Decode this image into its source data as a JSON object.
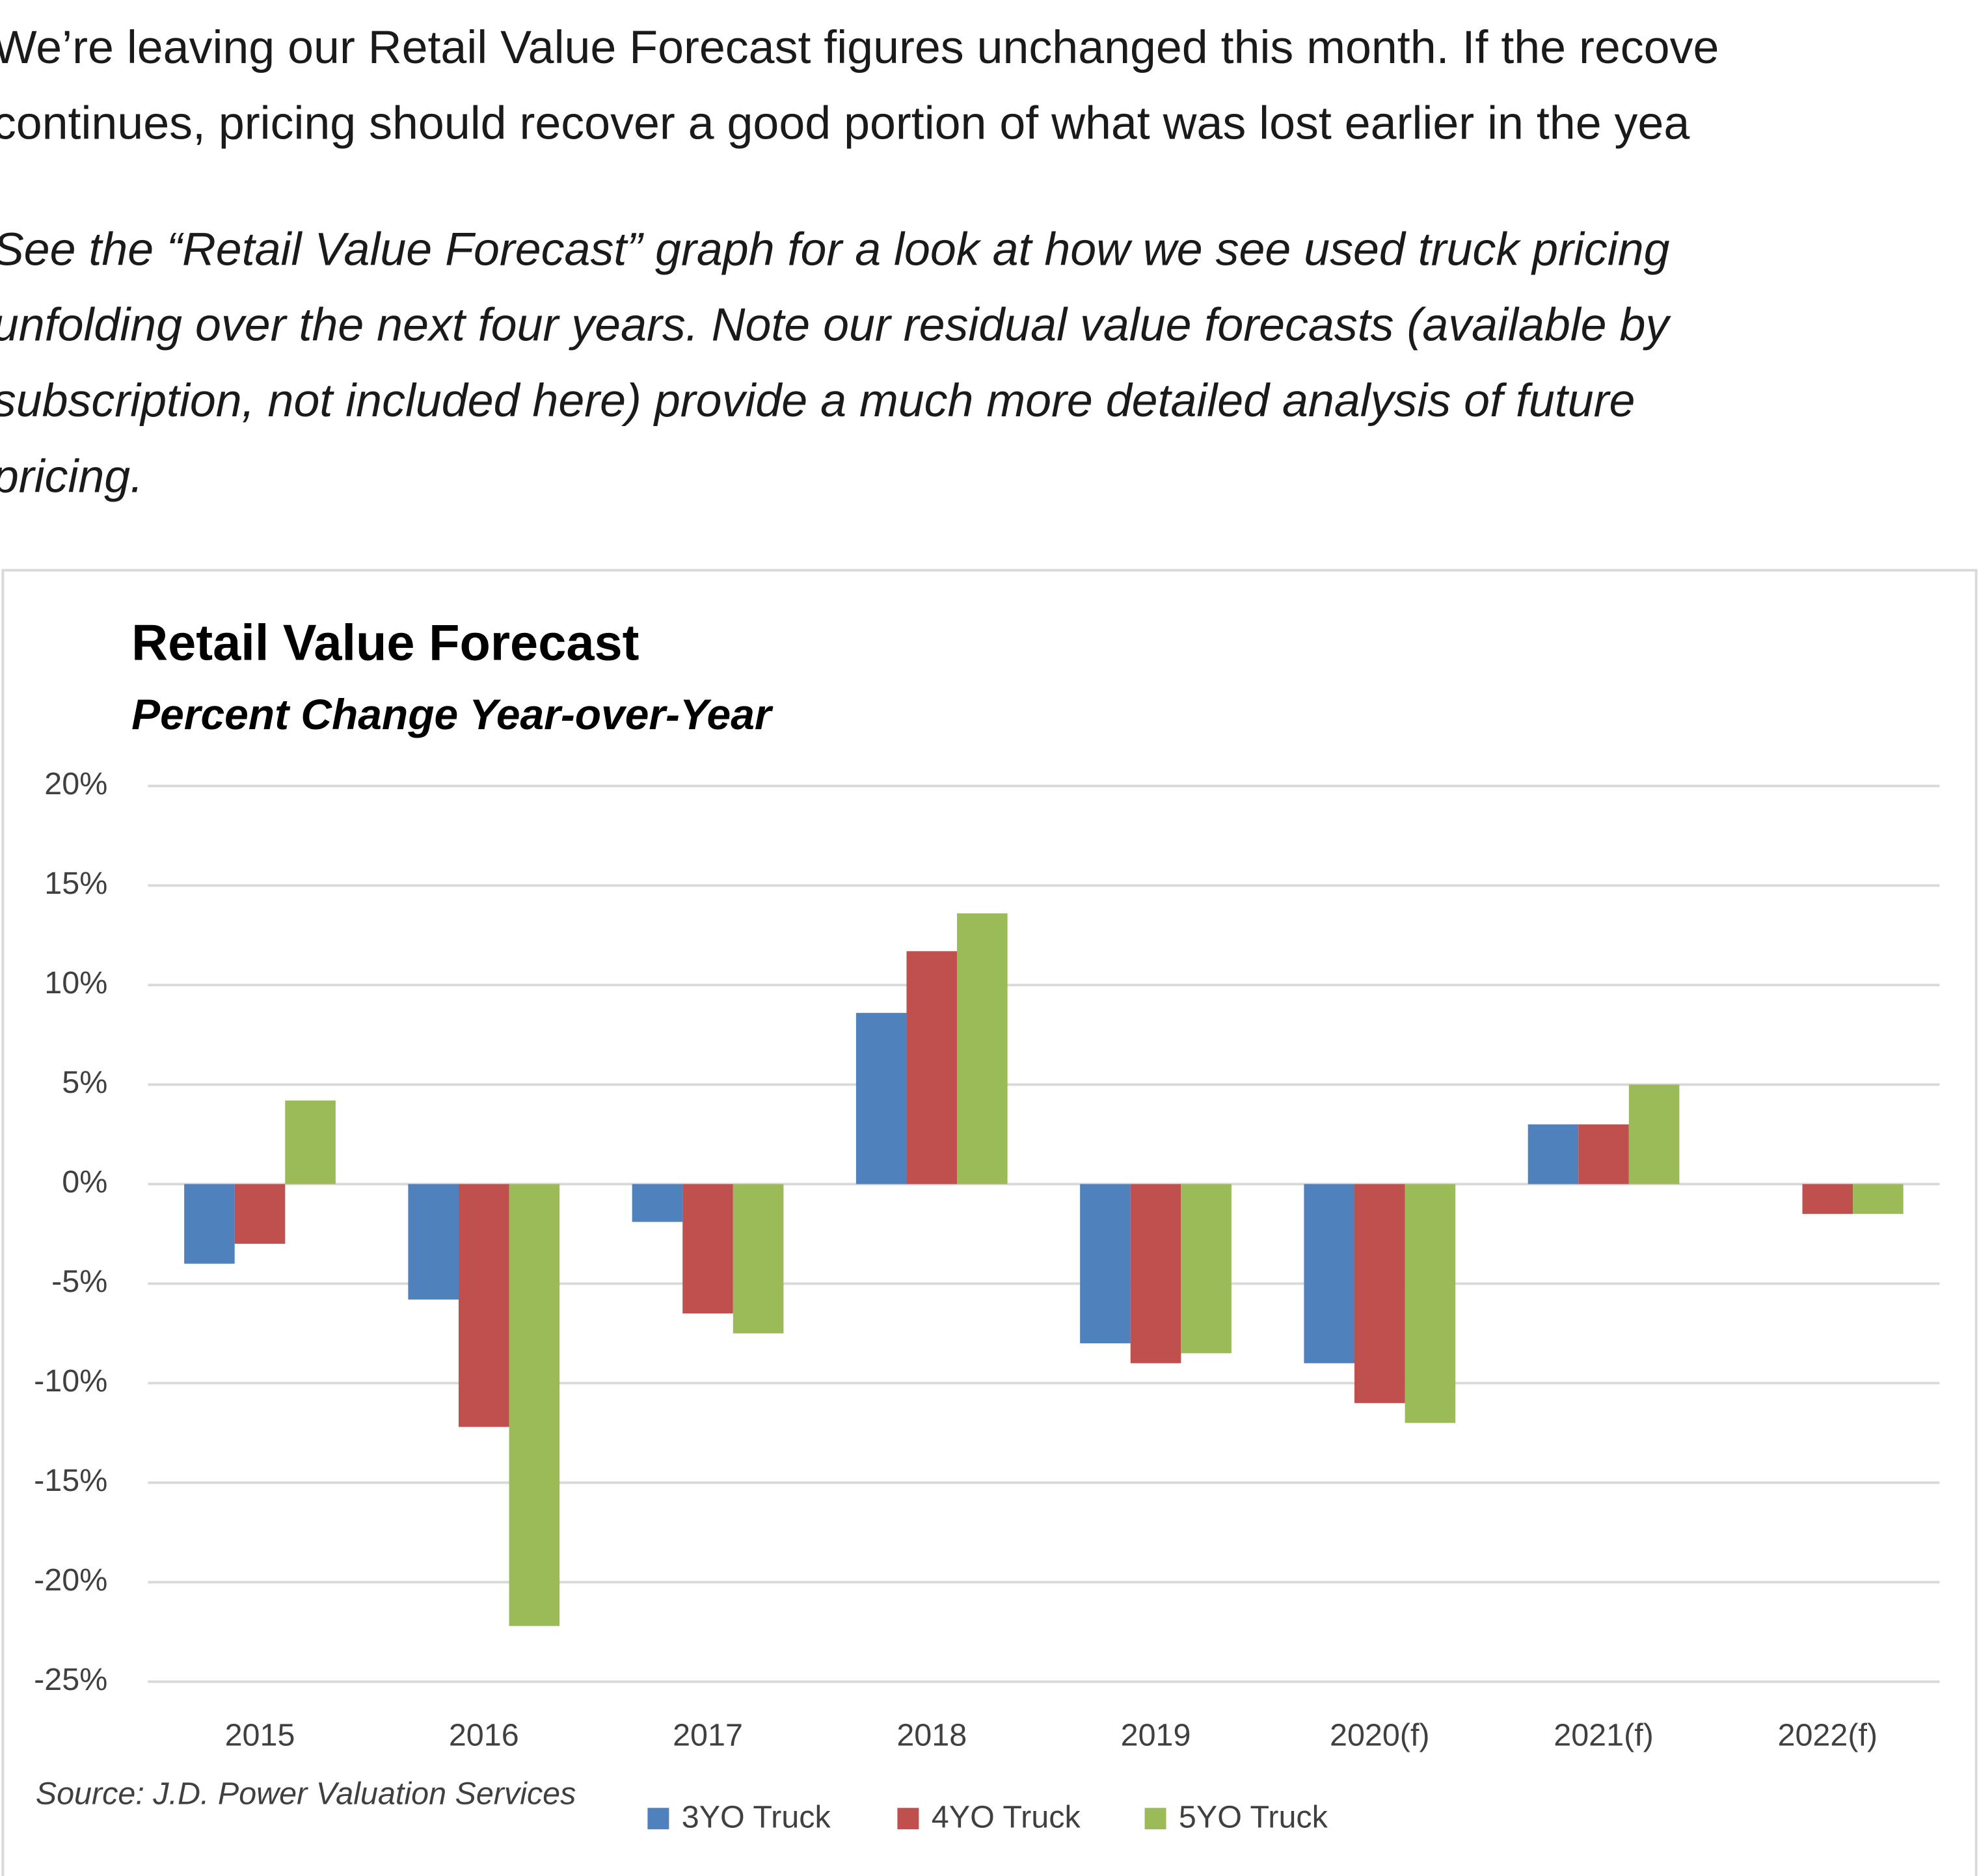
{
  "paragraphs": [
    {
      "lines": [
        "We’re leaving our Retail Value Forecast figures unchanged this month. If the recove",
        "continues, pricing should recover a good portion of what was lost earlier in the yea"
      ]
    },
    {
      "lines": [
        "See the “Retail Value Forecast” graph for a look at how we see used truck pricing",
        "unfolding over the next four years. Note our residual value forecasts (available by",
        "subscription, not included here) provide a much more detailed analysis of future",
        "pricing."
      ]
    }
  ],
  "chart_data": {
    "type": "bar",
    "title": "Retail Value Forecast",
    "subtitle": "Percent Change Year-over-Year",
    "source": "Source: J.D. Power Valuation Services",
    "categories": [
      "2015",
      "2016",
      "2017",
      "2018",
      "2019",
      "2020(f)",
      "2021(f)",
      "2022(f)"
    ],
    "series": [
      {
        "name": "3YO Truck",
        "color": "#4f81bd",
        "values": [
          -4,
          -5.8,
          -1.9,
          8.6,
          -8,
          -9,
          3,
          0
        ]
      },
      {
        "name": "4YO Truck",
        "color": "#c0504d",
        "values": [
          -3,
          -12.2,
          -6.5,
          11.7,
          -9,
          -11,
          3,
          -1.5
        ]
      },
      {
        "name": "5YO Truck",
        "color": "#9bbb59",
        "values": [
          4.2,
          -22.2,
          -7.5,
          13.6,
          -8.5,
          -12,
          5,
          -1.5
        ]
      }
    ],
    "ylim": [
      -25,
      20
    ],
    "yticks": [
      {
        "value": 20,
        "label": "20%"
      },
      {
        "value": 15,
        "label": "15%"
      },
      {
        "value": 10,
        "label": "10%"
      },
      {
        "value": 5,
        "label": "5%"
      },
      {
        "value": 0,
        "label": "0%"
      },
      {
        "value": -5,
        "label": "-5%"
      },
      {
        "value": -10,
        "label": "-10%"
      },
      {
        "value": -15,
        "label": "-15%"
      },
      {
        "value": -20,
        "label": "-20%"
      },
      {
        "value": -25,
        "label": "-25%"
      }
    ],
    "grid": true,
    "legend": "bottom"
  }
}
